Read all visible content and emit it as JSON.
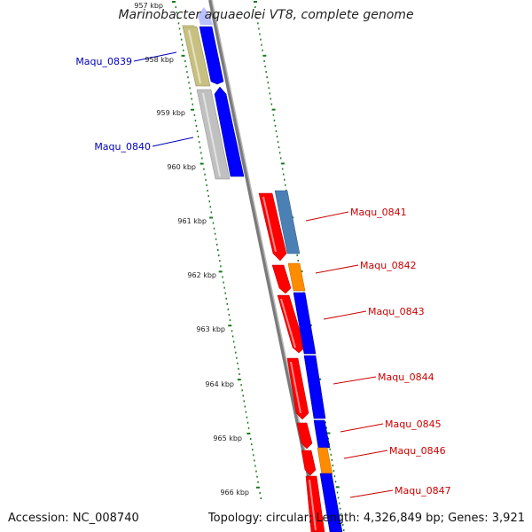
{
  "title": "Marinobacter aquaeolei VT8, complete genome",
  "accession_text": "Accession: NC_008740",
  "summary_text": "Topology: circular; Length: 4,326,849 bp; Genes: 3,921",
  "ticks": [
    "957 kbp",
    "958 kbp",
    "959 kbp",
    "960 kbp",
    "961 kbp",
    "962 kbp",
    "963 kbp",
    "964 kbp",
    "965 kbp",
    "966 kbp"
  ],
  "colors": {
    "blue": "#0000ff",
    "red": "#ff0000",
    "orange": "#ff8c00",
    "steelblue": "#4a80b4",
    "olive": "#c8c080",
    "grey": "#c0c0c0",
    "label_blue": "#0000bb",
    "label_red": "#cc0000",
    "tick_green": "#1a7a1a",
    "backbone": "#808080"
  },
  "genes": [
    {
      "name": "Maqu_0839",
      "strand": "plus",
      "color": "blue",
      "label_color": "label_blue"
    },
    {
      "name": "Maqu_0840",
      "strand": "plus",
      "color": "blue",
      "label_color": "label_blue"
    },
    {
      "name": "Maqu_0841",
      "strand": "minus",
      "color": "red",
      "label_color": "label_red"
    },
    {
      "name": "Maqu_0842",
      "strand": "minus",
      "color": "red",
      "label_color": "label_red"
    },
    {
      "name": "Maqu_0843",
      "strand": "minus",
      "color": "red",
      "label_color": "label_red"
    },
    {
      "name": "Maqu_0844",
      "strand": "minus",
      "color": "red",
      "label_color": "label_red"
    },
    {
      "name": "Maqu_0845",
      "strand": "minus",
      "color": "red",
      "label_color": "label_red"
    },
    {
      "name": "Maqu_0846",
      "strand": "minus",
      "color": "red",
      "label_color": "label_red"
    },
    {
      "name": "Maqu_0847",
      "strand": "minus",
      "color": "red",
      "label_color": "label_red"
    }
  ]
}
